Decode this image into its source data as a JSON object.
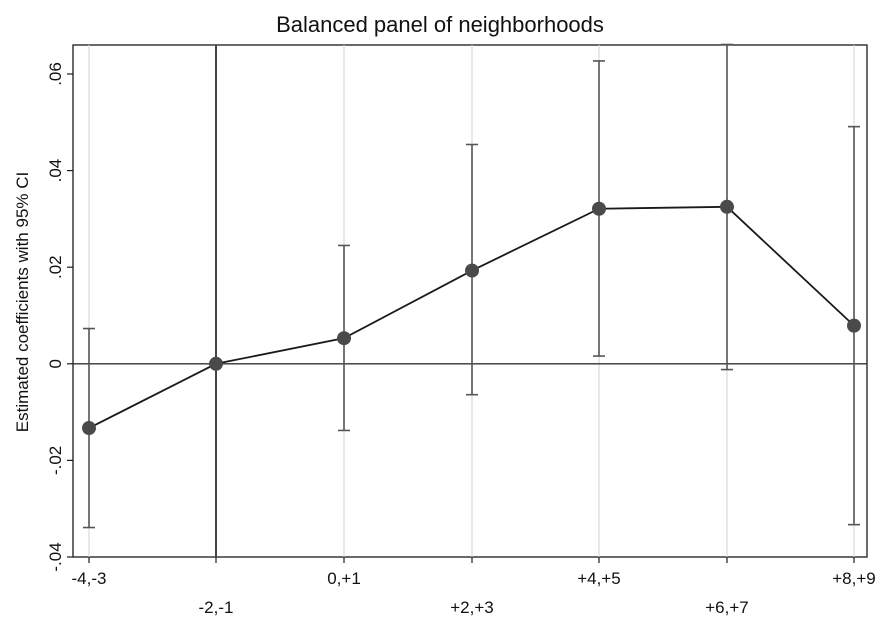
{
  "chart_data": {
    "type": "line",
    "title": "Balanced panel of neighborhoods",
    "ylabel": "Estimated coefficients with 95% CI",
    "xlabel": "",
    "categories": [
      "-4,-3",
      "-2,-1",
      "0,+1",
      "+2,+3",
      "+4,+5",
      "+6,+7",
      "+8,+9"
    ],
    "series": [
      {
        "values": [
          -0.0133,
          0.0,
          0.0053,
          0.0193,
          0.0321,
          0.0325,
          0.0079
        ],
        "ci_lower": [
          -0.0339,
          null,
          -0.0138,
          -0.0064,
          0.0016,
          -0.0012,
          -0.0333
        ],
        "ci_upper": [
          0.0073,
          null,
          0.0245,
          0.0454,
          0.0627,
          0.0661,
          0.0491
        ]
      }
    ],
    "ylim": [
      -0.04,
      0.066
    ],
    "yticks": [
      -0.04,
      -0.02,
      0,
      0.02,
      0.04,
      0.06
    ],
    "ytick_labels": [
      "-.04",
      "-.02",
      "0",
      ".02",
      ".04",
      ".06"
    ],
    "reference_line_y": 0,
    "reference_line_x": "-2,-1",
    "grid": "vertical",
    "colors": {
      "line": "#1a1a1a",
      "marker": "#4a4a4a",
      "errorbar": "#555555",
      "grid": "#d9d9d9"
    }
  }
}
